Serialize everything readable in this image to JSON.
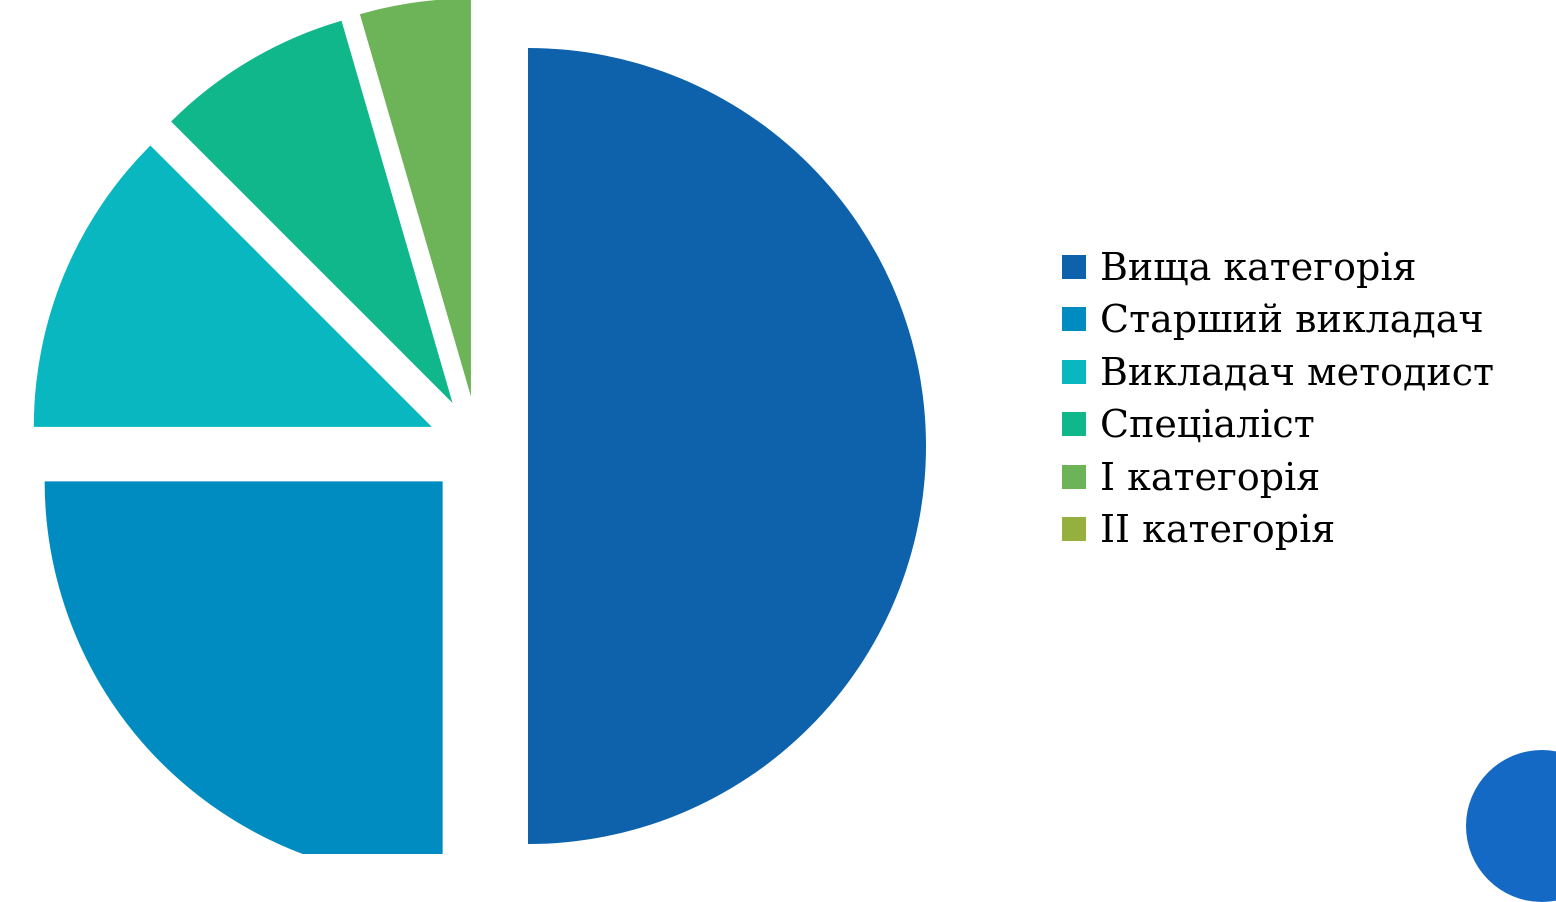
{
  "chart_data": {
    "type": "pie",
    "exploded": true,
    "start_angle_deg": 0,
    "direction": "clockwise",
    "title": "",
    "categories": [
      "Вища категорія",
      "Старший викладач",
      "Викладач методист",
      "Спеціаліст",
      "І категорія",
      "ІІ категорія"
    ],
    "values": [
      50,
      25,
      12.5,
      8,
      4.5,
      0
    ],
    "colors": [
      "#0d62ab",
      "#008cc1",
      "#08b7c0",
      "#10b78a",
      "#6db358",
      "#96b040"
    ],
    "legend_placement": "right"
  },
  "decor": {
    "corner_circle_color": "#1469c4"
  }
}
